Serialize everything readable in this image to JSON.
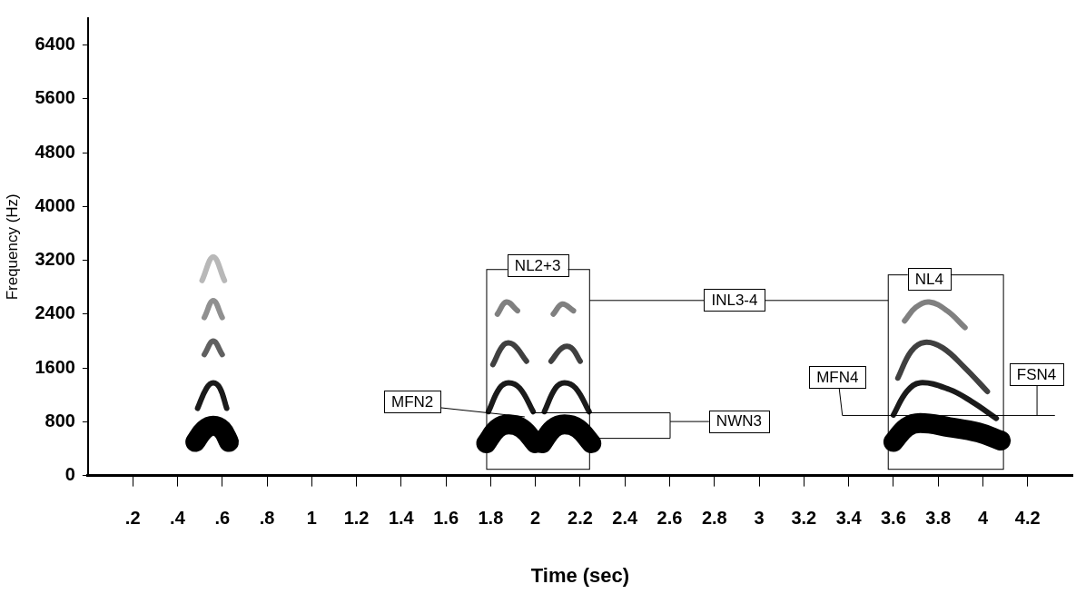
{
  "chart_data": {
    "type": "line",
    "x_label": "Time (sec)",
    "y_label": "Frequency (Hz)",
    "xlim": [
      0,
      4.4
    ],
    "xticks": [
      {
        "value": 0.2,
        "label": ".2"
      },
      {
        "value": 0.4,
        "label": ".4"
      },
      {
        "value": 0.6,
        "label": ".6"
      },
      {
        "value": 0.8,
        "label": ".8"
      },
      1,
      1.2,
      1.4,
      1.6,
      1.8,
      2,
      2.2,
      2.4,
      2.6,
      2.8,
      3,
      3.2,
      3.4,
      3.6,
      3.8,
      4,
      4.2
    ],
    "ylim": [
      0,
      6800
    ],
    "yticks": [
      0,
      800,
      1600,
      2400,
      3200,
      4000,
      4800,
      5600,
      6400
    ],
    "grid": false,
    "series": [
      {
        "color": "#000000",
        "line_style": "thick",
        "x": [
          0.48,
          0.52,
          0.56,
          0.6,
          0.63
        ],
        "values": [
          500,
          680,
          740,
          680,
          500
        ]
      },
      {
        "color": "#1a1a1a",
        "line_style": "solid",
        "x": [
          0.49,
          0.53,
          0.56,
          0.59,
          0.62
        ],
        "values": [
          1000,
          1300,
          1380,
          1300,
          1000
        ]
      },
      {
        "color": "#606060",
        "line_style": "solid",
        "x": [
          0.52,
          0.56,
          0.6
        ],
        "values": [
          1800,
          2000,
          1800
        ]
      },
      {
        "color": "#909090",
        "line_style": "solid",
        "x": [
          0.52,
          0.56,
          0.6
        ],
        "values": [
          2350,
          2600,
          2350
        ]
      },
      {
        "color": "#b8b8b8",
        "line_style": "solid",
        "x": [
          0.51,
          0.56,
          0.61
        ],
        "values": [
          2900,
          3250,
          2900
        ]
      },
      {
        "color": "#000000",
        "line_style": "thick",
        "x": [
          1.78,
          1.83,
          1.88,
          1.94,
          2.0
        ],
        "values": [
          480,
          700,
          760,
          700,
          480
        ]
      },
      {
        "color": "#1a1a1a",
        "line_style": "solid",
        "x": [
          1.79,
          1.84,
          1.88,
          1.93,
          1.99
        ],
        "values": [
          950,
          1300,
          1380,
          1300,
          950
        ]
      },
      {
        "color": "#404040",
        "line_style": "solid",
        "x": [
          1.81,
          1.86,
          1.9,
          1.96
        ],
        "values": [
          1650,
          1950,
          1950,
          1700
        ]
      },
      {
        "color": "#808080",
        "line_style": "solid",
        "x": [
          1.83,
          1.87,
          1.92
        ],
        "values": [
          2400,
          2580,
          2450
        ]
      },
      {
        "color": "#000000",
        "line_style": "thick",
        "x": [
          2.03,
          2.08,
          2.13,
          2.19,
          2.25
        ],
        "values": [
          480,
          700,
          760,
          700,
          480
        ]
      },
      {
        "color": "#1a1a1a",
        "line_style": "solid",
        "x": [
          2.04,
          2.09,
          2.13,
          2.18,
          2.24
        ],
        "values": [
          950,
          1300,
          1380,
          1300,
          950
        ]
      },
      {
        "color": "#404040",
        "line_style": "solid",
        "x": [
          2.07,
          2.12,
          2.16,
          2.2
        ],
        "values": [
          1700,
          1900,
          1900,
          1700
        ]
      },
      {
        "color": "#808080",
        "line_style": "solid",
        "x": [
          2.08,
          2.12,
          2.17
        ],
        "values": [
          2400,
          2550,
          2450
        ]
      },
      {
        "color": "#000000",
        "line_style": "thick",
        "x": [
          3.6,
          3.66,
          3.72,
          3.85,
          3.98,
          4.08
        ],
        "values": [
          500,
          720,
          780,
          720,
          640,
          520
        ]
      },
      {
        "color": "#1a1a1a",
        "line_style": "solid",
        "x": [
          3.6,
          3.66,
          3.72,
          3.85,
          3.95,
          4.06
        ],
        "values": [
          900,
          1250,
          1380,
          1280,
          1100,
          850
        ]
      },
      {
        "color": "#404040",
        "line_style": "solid",
        "x": [
          3.62,
          3.68,
          3.74,
          3.82,
          3.92,
          4.02
        ],
        "values": [
          1450,
          1850,
          1980,
          1900,
          1600,
          1250
        ]
      },
      {
        "color": "#808080",
        "line_style": "solid",
        "x": [
          3.65,
          3.7,
          3.76,
          3.84,
          3.92
        ],
        "values": [
          2300,
          2500,
          2580,
          2450,
          2200
        ]
      }
    ],
    "regions": [
      {
        "x": [
          1.78,
          2.24
        ],
        "y": [
          100,
          3070
        ]
      },
      {
        "x": [
          3.575,
          4.09
        ],
        "y": [
          100,
          2990
        ]
      }
    ],
    "annotations": [
      {
        "text": "NL2+3",
        "x": 2.01,
        "y": 3127,
        "lines": []
      },
      {
        "text": "INL3-4",
        "x": 2.89,
        "y": 2610,
        "lines": [
          [
            [
              2.24,
              2610
            ],
            [
              2.89,
              2610
            ],
            [
              3.575,
              2610
            ]
          ]
        ]
      },
      {
        "text": "NL4",
        "x": 3.76,
        "y": 2918,
        "lines": []
      },
      {
        "text": "MFN2",
        "x": 1.45,
        "y": 1103,
        "lines": [
          [
            [
              1.45,
              1060
            ],
            [
              1.95,
              880
            ]
          ]
        ]
      },
      {
        "text": "NWN3",
        "x": 2.91,
        "y": 810,
        "lines": [
          [
            [
              2.91,
              810
            ],
            [
              2.6,
              810
            ],
            [
              2.6,
              940
            ],
            [
              1.98,
              940
            ]
          ],
          [
            [
              2.6,
              810
            ],
            [
              2.6,
              560
            ],
            [
              2.22,
              560
            ]
          ]
        ]
      },
      {
        "text": "MFN4",
        "x": 3.35,
        "y": 1466,
        "lines": [
          [
            [
              3.35,
              1466
            ],
            [
              3.37,
              900
            ],
            [
              4.32,
              900
            ]
          ]
        ]
      },
      {
        "text": "FSN4",
        "x": 4.24,
        "y": 1508,
        "lines": [
          [
            [
              4.24,
              1508
            ],
            [
              4.24,
              900
            ]
          ]
        ]
      }
    ]
  }
}
